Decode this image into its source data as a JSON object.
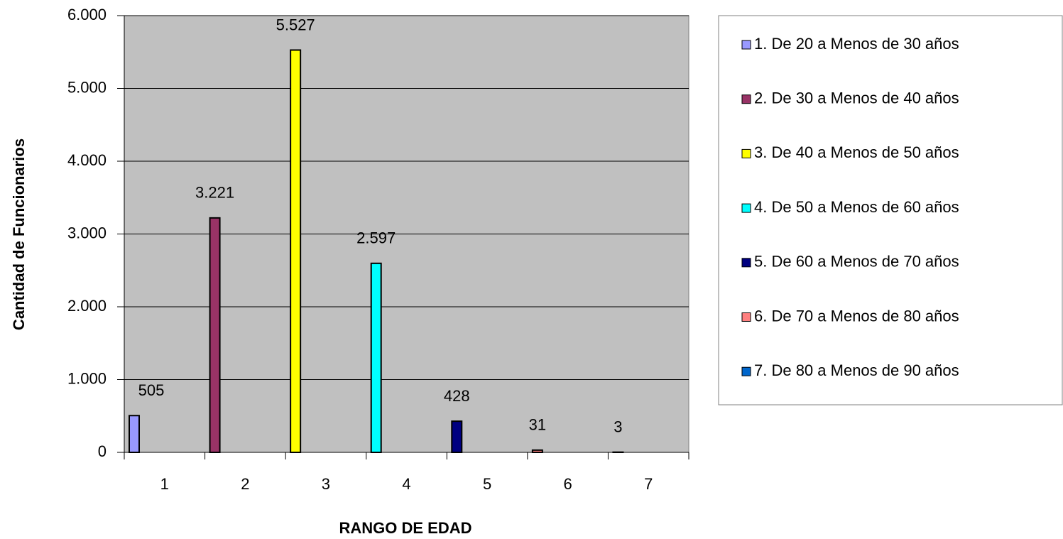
{
  "chart_data": {
    "type": "bar",
    "xlabel": "RANGO DE EDAD",
    "ylabel": "Cantidad de Funcionarios",
    "categories": [
      "1",
      "2",
      "3",
      "4",
      "5",
      "6",
      "7"
    ],
    "series": [
      {
        "name": "1. De 20 a Menos de 30 años",
        "color": "#9999ff",
        "values": [
          505,
          null,
          null,
          null,
          null,
          null,
          null
        ]
      },
      {
        "name": "2. De 30 a Menos de 40 años",
        "color": "#993366",
        "values": [
          null,
          3221,
          null,
          null,
          null,
          null,
          null
        ],
        "value_labels": [
          null,
          "3.221",
          null,
          null,
          null,
          null,
          null
        ]
      },
      {
        "name": "3. De 40 a Menos de 50 años",
        "color": "#ffff00",
        "values": [
          null,
          null,
          5527,
          null,
          null,
          null,
          null
        ],
        "value_labels": [
          null,
          null,
          "5.527",
          null,
          null,
          null,
          null
        ]
      },
      {
        "name": "4. De 50 a Menos de 60 años",
        "color": "#00ffff",
        "values": [
          null,
          null,
          null,
          2597,
          null,
          null,
          null
        ],
        "value_labels": [
          null,
          null,
          null,
          "2.597",
          null,
          null,
          null
        ]
      },
      {
        "name": "5. De 60 a Menos de 70 años",
        "color": "#000080",
        "values": [
          null,
          null,
          null,
          null,
          428,
          null,
          null
        ]
      },
      {
        "name": "6. De 70 a Menos de 80 años",
        "color": "#ff8080",
        "values": [
          null,
          null,
          null,
          null,
          null,
          31,
          null
        ]
      },
      {
        "name": "7. De 80 a Menos de 90 años",
        "color": "#0066cc",
        "values": [
          null,
          null,
          null,
          null,
          null,
          null,
          3
        ]
      }
    ],
    "ylim": [
      0,
      6000
    ],
    "yticks": [
      0,
      {
        "value": 1000,
        "label": "1.000"
      },
      {
        "value": 2000,
        "label": "2.000"
      },
      {
        "value": 3000,
        "label": "3.000"
      },
      {
        "value": 4000,
        "label": "4.000"
      },
      {
        "value": 5000,
        "label": "5.000"
      },
      {
        "value": 6000,
        "label": "6.000"
      }
    ],
    "grid": true,
    "legend": "right"
  }
}
